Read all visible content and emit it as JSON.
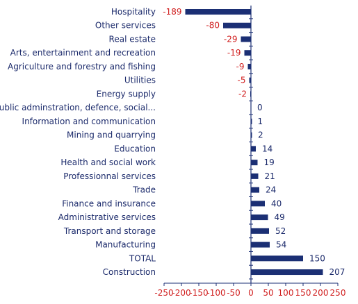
{
  "chart_data": {
    "type": "bar",
    "orientation": "horizontal",
    "categories": [
      "Hospitality",
      "Other services",
      "Real estate",
      "Arts, entertainment and recreation",
      "Agriculture and forestry and fishing",
      "Utilities",
      "Energy supply",
      "Public adminstration, defence, social...",
      "Information and communication",
      "Mining and quarrying",
      "Education",
      "Health and social work",
      "Professionnal services",
      "Trade",
      "Finance and insurance",
      "Administrative services",
      "Transport and storage",
      "Manufacturing",
      "TOTAL",
      "Construction"
    ],
    "values": [
      -189,
      -80,
      -29,
      -19,
      -9,
      -5,
      -2,
      0,
      1,
      2,
      14,
      19,
      21,
      24,
      40,
      49,
      52,
      54,
      150,
      207
    ],
    "value_labels": [
      "-189",
      "-80",
      "-29",
      "-19",
      "-9",
      "-5",
      "-2",
      "0",
      "1",
      "2",
      "14",
      "19",
      "21",
      "24",
      "40",
      "49",
      "52",
      "54",
      "150",
      "207"
    ],
    "xlim": [
      -250,
      250
    ],
    "xticks": [
      -250,
      -200,
      -150,
      -100,
      -50,
      0,
      50,
      100,
      150,
      200,
      250
    ],
    "xtick_labels": [
      "-250",
      "-200",
      "-150",
      "-100",
      "-50",
      "0",
      "50",
      "100",
      "150",
      "200",
      "250"
    ],
    "title": "",
    "xlabel": "",
    "ylabel": "",
    "grid": false,
    "legend": "none",
    "colors": {
      "bar": "#1b2f74",
      "category_text": "#1b2a6b",
      "negative_text": "#d01e1e",
      "positive_text": "#1b2a6b",
      "axis": "#1b2f74",
      "tick_text": "#d01e1e"
    }
  }
}
